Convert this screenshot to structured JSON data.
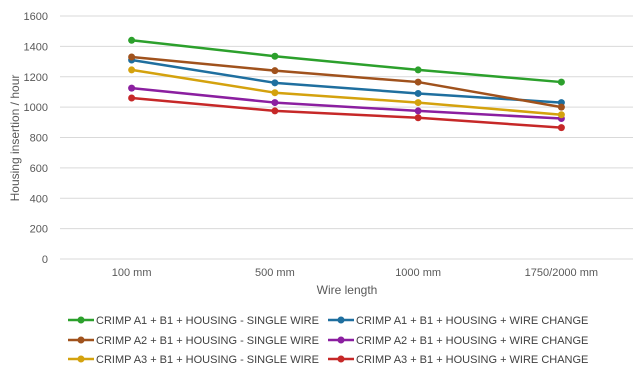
{
  "chart_data": {
    "type": "line",
    "categories": [
      "100 mm",
      "500 mm",
      "1000 mm",
      "1750/2000 mm"
    ],
    "xlabel": "Wire length",
    "ylabel": "Housing insertion / hour",
    "ylim": [
      0,
      1600
    ],
    "yticks": [
      0,
      200,
      400,
      600,
      800,
      1000,
      1200,
      1400,
      1600
    ],
    "grid": "horizontal",
    "legend_position": "bottom",
    "series": [
      {
        "name": "CRIMP A1 + B1 + HOUSING - SINGLE WIRE",
        "color": "#2ca02c",
        "values": [
          1440,
          1335,
          1245,
          1165
        ]
      },
      {
        "name": "CRIMP A1 + B1 + HOUSING + WIRE CHANGE",
        "color": "#1f6f9f",
        "values": [
          1310,
          1160,
          1090,
          1030
        ]
      },
      {
        "name": "CRIMP A2 + B1 + HOUSING - SINGLE WIRE",
        "color": "#a0521d",
        "values": [
          1330,
          1240,
          1165,
          1000
        ]
      },
      {
        "name": "CRIMP A2 + B1 + HOUSING + WIRE CHANGE",
        "color": "#8b1fa0",
        "values": [
          1125,
          1030,
          975,
          925
        ]
      },
      {
        "name": "CRIMP A3 + B1 + HOUSING - SINGLE WIRE",
        "color": "#d4a20e",
        "values": [
          1245,
          1095,
          1030,
          950
        ]
      },
      {
        "name": "CRIMP A3 + B1 + HOUSING + WIRE CHANGE",
        "color": "#c62828",
        "values": [
          1060,
          975,
          930,
          865
        ]
      }
    ]
  }
}
